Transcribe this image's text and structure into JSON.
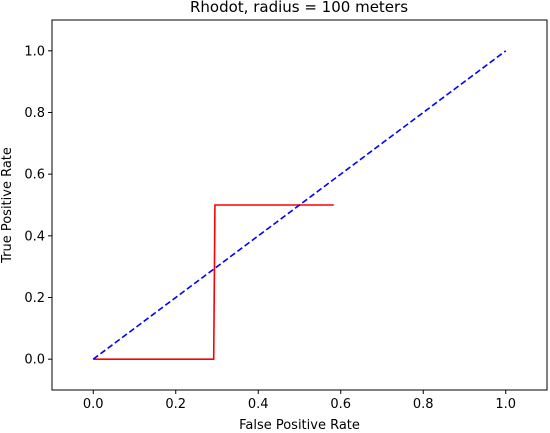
{
  "chart_data": {
    "type": "line",
    "title": "Rhodot, radius = 100 meters",
    "xlabel": "False Positive Rate",
    "ylabel": "True Positive Rate",
    "xlim": [
      -0.1,
      1.1
    ],
    "ylim": [
      -0.1,
      1.1
    ],
    "xticks": [
      "0.0",
      "0.2",
      "0.4",
      "0.6",
      "0.8",
      "1.0"
    ],
    "yticks": [
      "0.0",
      "0.2",
      "0.4",
      "0.6",
      "0.8",
      "1.0"
    ],
    "grid": false,
    "series": [
      {
        "color": "#ff0000",
        "style": "solid",
        "x": [
          0.0,
          0.292,
          0.295,
          0.583
        ],
        "y": [
          0.0,
          0.0,
          0.5,
          0.5
        ]
      },
      {
        "color": "#0000ff",
        "style": "dashed",
        "x": [
          0.0,
          1.0
        ],
        "y": [
          0.0,
          1.0
        ]
      }
    ]
  }
}
